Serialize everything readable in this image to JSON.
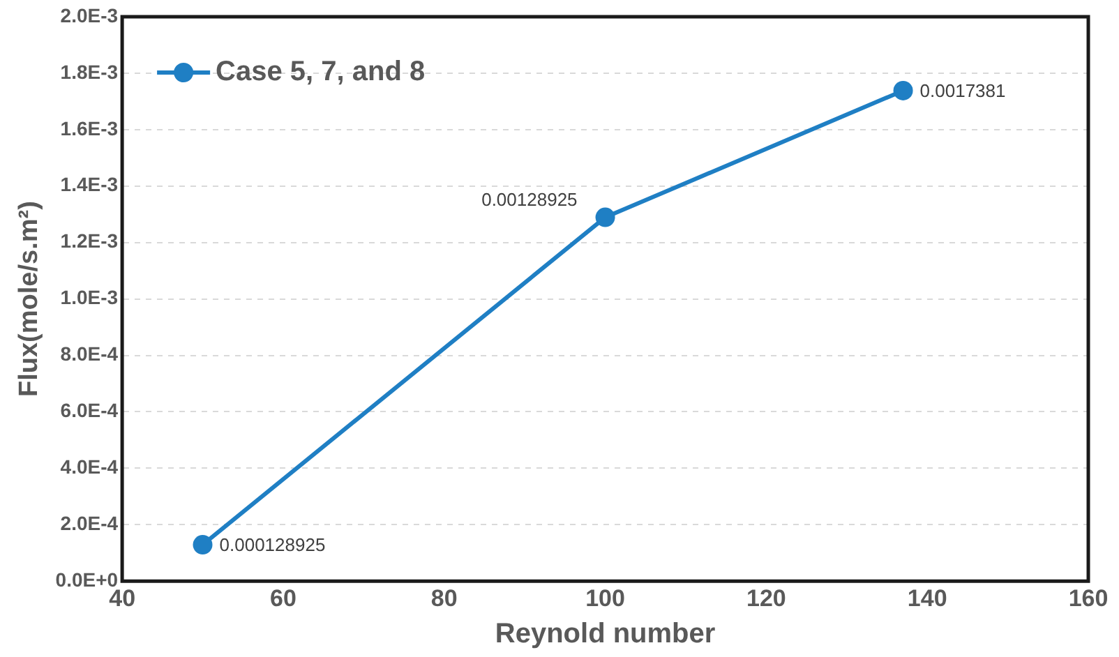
{
  "chart_data": {
    "type": "line",
    "xlabel": "Reynold number",
    "ylabel": "Flux(mole/s.m²)",
    "x": [
      50,
      100,
      137
    ],
    "series": [
      {
        "name": "Case 5, 7, and 8",
        "color": "#1f7fc4",
        "values": [
          0.000128925,
          0.00128925,
          0.0017381
        ]
      }
    ],
    "xlim": [
      40,
      160
    ],
    "xticks": [
      40,
      60,
      80,
      100,
      120,
      140,
      160
    ],
    "ylim": [
      0,
      0.002
    ],
    "yticks": [
      {
        "value": 0,
        "label": "0.0E+0"
      },
      {
        "value": 0.0002,
        "label": "2.0E-4"
      },
      {
        "value": 0.0004,
        "label": "4.0E-4"
      },
      {
        "value": 0.0006,
        "label": "6.0E-4"
      },
      {
        "value": 0.0008,
        "label": "8.0E-4"
      },
      {
        "value": 0.001,
        "label": "1.0E-3"
      },
      {
        "value": 0.0012,
        "label": "1.2E-3"
      },
      {
        "value": 0.0014,
        "label": "1.4E-3"
      },
      {
        "value": 0.0016,
        "label": "1.6E-3"
      },
      {
        "value": 0.0018,
        "label": "1.8E-3"
      },
      {
        "value": 0.002,
        "label": "2.0E-3"
      }
    ],
    "grid": "y",
    "legend": "top left",
    "marker": "circle",
    "line_style": "solid",
    "data_labels": true
  }
}
